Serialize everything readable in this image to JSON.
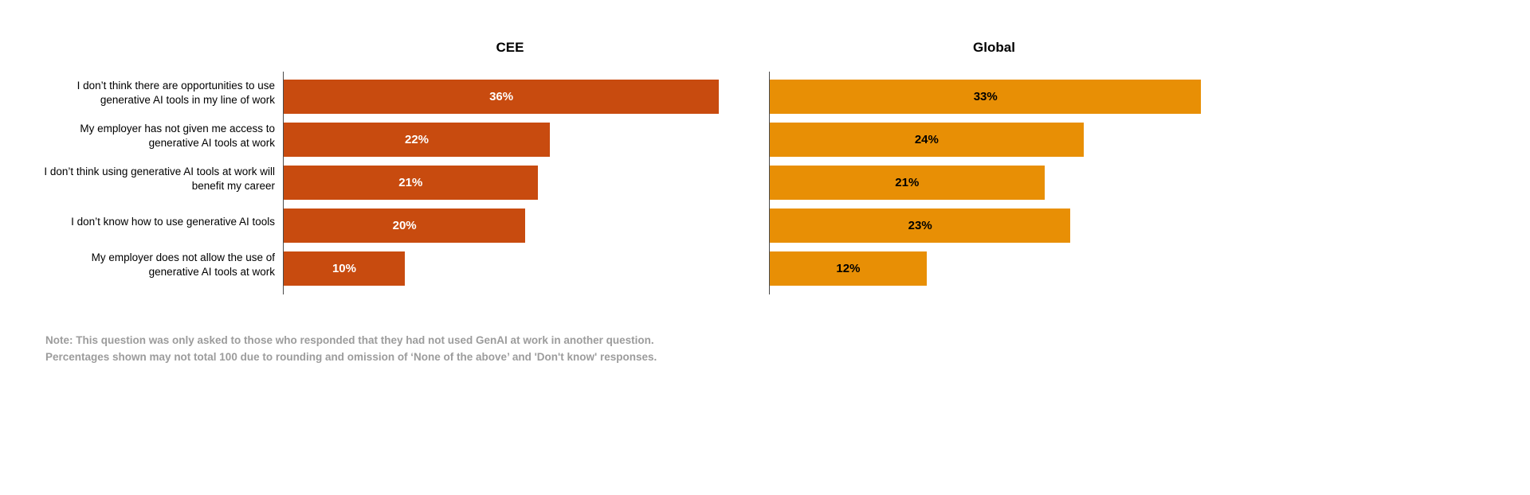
{
  "chart_data": {
    "type": "bar",
    "orientation": "horizontal",
    "categories": [
      "I don’t think there are opportunities to use generative AI tools in my line of work",
      "My employer has not given me access to generative AI tools at work",
      "I don’t think using generative AI tools at work will benefit my career",
      "I don’t know how to use generative AI tools",
      "My employer does not allow the use of generative AI tools at work"
    ],
    "series": [
      {
        "name": "CEE",
        "values": [
          36,
          22,
          21,
          20,
          10
        ],
        "color": "#c84b0f",
        "label_color": "#ffffff"
      },
      {
        "name": "Global",
        "values": [
          33,
          24,
          21,
          23,
          12
        ],
        "color": "#e88f05",
        "label_color": "#000000"
      }
    ],
    "value_suffix": "%",
    "xlim": [
      0,
      37
    ],
    "grid": false,
    "legend": "none",
    "title": ""
  },
  "note": {
    "line1": "Note: This question was only asked to those who responded that they had not used GenAI at work in another question.",
    "line2": "Percentages shown may not total 100 due to rounding and omission of ‘None of the above’ and 'Don't know' responses."
  }
}
